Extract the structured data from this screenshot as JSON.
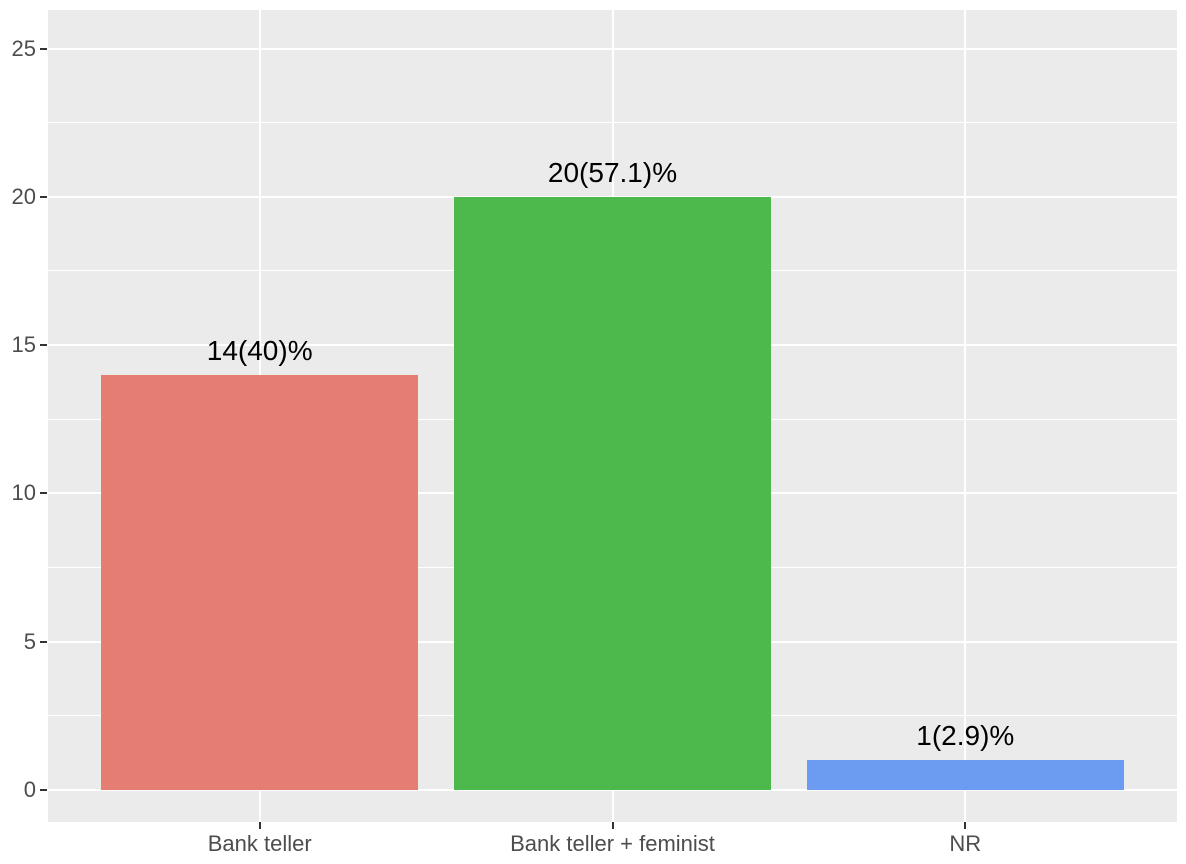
{
  "chart_data": {
    "type": "bar",
    "title": "",
    "categories": [
      "Bank teller",
      "Bank teller + feminist",
      "NR"
    ],
    "values": [
      14,
      20,
      1
    ],
    "bar_labels": [
      "14(40)%",
      "20(57.1)%",
      "1(2.9)%"
    ],
    "bar_colors": [
      "#E67D72",
      "#4DB94C",
      "#6C9CF2"
    ],
    "xlabel": "",
    "ylabel": "",
    "y_ticks": [
      0,
      5,
      10,
      15,
      20,
      25
    ],
    "y_minor_gridlines": [
      2.5,
      7.5,
      12.5,
      17.5,
      22.5
    ],
    "ylim": [
      -1.08,
      26.3
    ],
    "grid": true,
    "legend_position": "none",
    "styles": {
      "figure_background": "#FFFFFF",
      "panel_background": "#EBEBEB",
      "gridline_color": "#FFFFFF",
      "axis_text_color": "#4D4D4D",
      "tick_mark_color": "#333333",
      "bar_label_color": "#000000"
    }
  }
}
